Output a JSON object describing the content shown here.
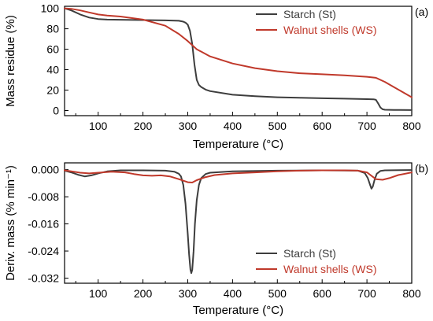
{
  "chart_data": [
    {
      "type": "line",
      "panel_label": "(a)",
      "xlabel": "Temperature (°C)",
      "ylabel": "Mass residue (%)",
      "xlim": [
        25,
        800
      ],
      "ylim": [
        -5,
        102
      ],
      "x_ticks": [
        100,
        200,
        300,
        400,
        500,
        600,
        700,
        800
      ],
      "y_ticks": [
        0,
        20,
        40,
        60,
        80,
        100
      ],
      "grid": false,
      "legend": "top-right",
      "series": [
        {
          "name": "Starch (St)",
          "color": "#3d3d3d",
          "x": [
            25,
            40,
            60,
            80,
            100,
            120,
            150,
            200,
            250,
            280,
            290,
            295,
            300,
            305,
            310,
            315,
            320,
            325,
            330,
            340,
            350,
            400,
            450,
            500,
            550,
            600,
            650,
            700,
            715,
            720,
            725,
            730,
            735,
            740,
            760,
            800
          ],
          "y": [
            100,
            98,
            94,
            91,
            89.5,
            89,
            88.8,
            88.5,
            88.2,
            87.8,
            87,
            86,
            84,
            78,
            65,
            45,
            30,
            25,
            23,
            20.5,
            19,
            15.5,
            14,
            13,
            12.5,
            12,
            11.6,
            11.2,
            11,
            10.5,
            7,
            3,
            1.2,
            0.8,
            0.6,
            0.5
          ]
        },
        {
          "name": "Walnut shells (WS)",
          "color": "#c0392b",
          "x": [
            25,
            40,
            60,
            80,
            100,
            120,
            150,
            200,
            250,
            280,
            300,
            320,
            350,
            400,
            450,
            500,
            550,
            600,
            650,
            700,
            720,
            740,
            760,
            780,
            800
          ],
          "y": [
            100,
            99.5,
            98,
            96,
            94,
            93,
            92,
            89,
            83,
            75,
            68,
            60,
            53,
            46,
            41.5,
            38.5,
            36.5,
            35.5,
            34.5,
            33,
            32,
            28,
            23,
            18,
            13
          ]
        }
      ]
    },
    {
      "type": "line",
      "panel_label": "(b)",
      "xlabel": "Temperature (°C)",
      "ylabel": "Deriv. mass (% min⁻¹)",
      "xlim": [
        25,
        800
      ],
      "ylim": [
        -0.0335,
        0.002
      ],
      "x_ticks": [
        100,
        200,
        300,
        400,
        500,
        600,
        700,
        800
      ],
      "y_ticks": [
        0.0,
        -0.008,
        -0.016,
        -0.024,
        -0.032
      ],
      "y_tick_labels": [
        "0.000",
        "-0.008",
        "-0.016",
        "-0.024",
        "-0.032"
      ],
      "grid": false,
      "legend": "bottom-right",
      "series": [
        {
          "name": "Starch (St)",
          "color": "#3d3d3d",
          "x": [
            25,
            40,
            55,
            70,
            85,
            100,
            120,
            150,
            200,
            250,
            270,
            280,
            285,
            290,
            295,
            300,
            303,
            306,
            308,
            310,
            313,
            316,
            320,
            325,
            330,
            340,
            350,
            400,
            500,
            600,
            680,
            695,
            702,
            707,
            710,
            713,
            717,
            722,
            730,
            740,
            800
          ],
          "y": [
            -0.0003,
            -0.0008,
            -0.0015,
            -0.002,
            -0.0017,
            -0.0011,
            -0.0005,
            -0.0002,
            -0.0002,
            -0.0003,
            -0.0006,
            -0.0012,
            -0.002,
            -0.0045,
            -0.01,
            -0.019,
            -0.025,
            -0.0295,
            -0.0305,
            -0.0295,
            -0.024,
            -0.016,
            -0.009,
            -0.0045,
            -0.0025,
            -0.0013,
            -0.0009,
            -0.0005,
            -0.0003,
            -0.0002,
            -0.0003,
            -0.001,
            -0.0025,
            -0.0045,
            -0.0056,
            -0.005,
            -0.003,
            -0.0012,
            -0.0004,
            -0.0002,
            -0.0001
          ]
        },
        {
          "name": "Walnut shells (WS)",
          "color": "#c0392b",
          "x": [
            25,
            40,
            60,
            80,
            100,
            130,
            160,
            180,
            200,
            220,
            240,
            260,
            280,
            300,
            310,
            320,
            340,
            360,
            400,
            450,
            500,
            550,
            600,
            650,
            680,
            700,
            710,
            720,
            735,
            750,
            770,
            800
          ],
          "y": [
            -0.0002,
            -0.0005,
            -0.0009,
            -0.0011,
            -0.0009,
            -0.0006,
            -0.0008,
            -0.0013,
            -0.0017,
            -0.0018,
            -0.0017,
            -0.002,
            -0.0028,
            -0.0037,
            -0.0038,
            -0.0031,
            -0.0022,
            -0.0016,
            -0.0011,
            -0.0008,
            -0.0005,
            -0.0003,
            -0.0002,
            -0.0002,
            -0.0003,
            -0.0008,
            -0.0018,
            -0.0028,
            -0.003,
            -0.0025,
            -0.0016,
            -0.0008
          ]
        }
      ]
    }
  ]
}
